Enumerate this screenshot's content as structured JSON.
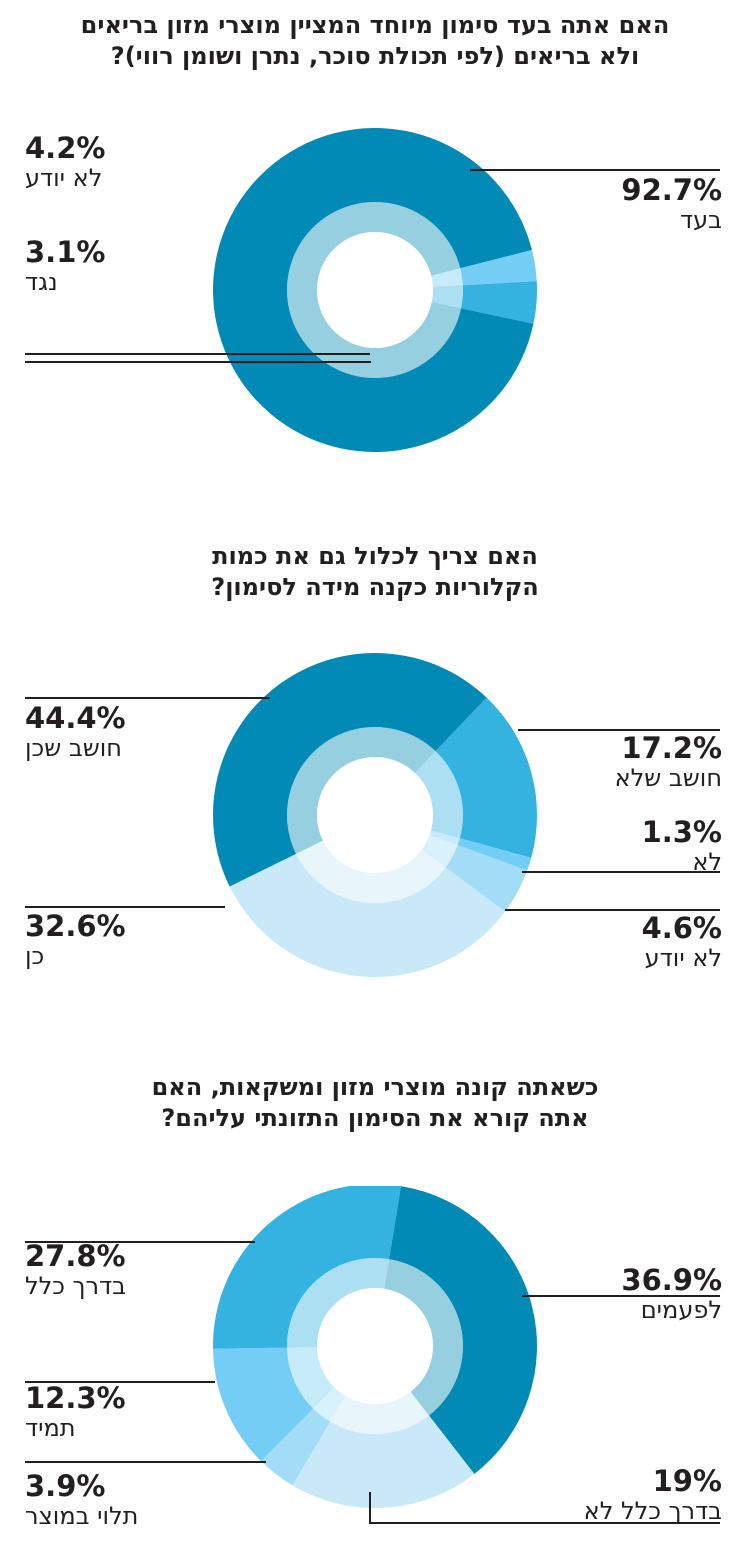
{
  "colors": {
    "dark": "#008ab5",
    "mid": "#34b2e0",
    "light": "#74cdf4",
    "lighter": "#a2dcf6",
    "lightest": "#c9e9f8",
    "line": "#231f20"
  },
  "chart_data": [
    {
      "type": "pie",
      "title": "האם אתה בעד סימון מיוחד המציין מוצרי מזון בריאים ולא בריאים (לפי תכולת סוכר, נתרן ושומן רווי)?",
      "title_lines": [
        "האם אתה בעד סימון מיוחד המציין מוצרי מזון בריאים",
        "ולא בריאים (לפי תכולת סוכר, נתרן ושומן רווי)?"
      ],
      "slices": [
        {
          "label": "בעד",
          "value": 92.7,
          "value_text": "92.7%",
          "color": "#008ab5"
        },
        {
          "label": "נגד",
          "value": 3.1,
          "value_text": "3.1%",
          "color": "#74cdf4"
        },
        {
          "label": "לא יודע",
          "value": 4.2,
          "value_text": "4.2%",
          "color": "#34b2e0"
        }
      ]
    },
    {
      "type": "pie",
      "title": "האם צריך לכלול גם את כמות הקלוריות כקנה מידה לסימון?",
      "title_lines": [
        "האם צריך לכלול גם את כמות",
        "הקלוריות כקנה מידה לסימון?"
      ],
      "slices": [
        {
          "label": "חושב שלא",
          "value": 17.2,
          "value_text": "17.2%",
          "color": "#34b2e0"
        },
        {
          "label": "לא",
          "value": 1.3,
          "value_text": "1.3%",
          "color": "#74cdf4"
        },
        {
          "label": "לא יודע",
          "value": 4.6,
          "value_text": "4.6%",
          "color": "#a2dcf6"
        },
        {
          "label": "כן",
          "value": 32.6,
          "value_text": "32.6%",
          "color": "#c9e9f8"
        },
        {
          "label": "חושב שכן",
          "value": 44.4,
          "value_text": "44.4%",
          "color": "#008ab5"
        }
      ]
    },
    {
      "type": "pie",
      "title": "כשאתה קונה מוצרי מזון ומשקאות, האם אתה קורא את הסימון התזונתי עליהם?",
      "title_lines": [
        "כשאתה קונה מוצרי מזון ומשקאות, האם",
        "אתה קורא את הסימון התזונתי עליהם?"
      ],
      "slices": [
        {
          "label": "לפעמים",
          "value": 36.9,
          "value_text": "36.9%",
          "color": "#008ab5"
        },
        {
          "label": "בדרך כלל לא",
          "value": 19,
          "value_text": "19%",
          "color": "#c9e9f8"
        },
        {
          "label": "תלוי במוצר",
          "value": 3.9,
          "value_text": "3.9%",
          "color": "#a2dcf6"
        },
        {
          "label": "תמיד",
          "value": 12.3,
          "value_text": "12.3%",
          "color": "#74cdf4"
        },
        {
          "label": "בדרך כלל",
          "value": 27.8,
          "value_text": "27.8%",
          "color": "#34b2e0"
        }
      ]
    }
  ]
}
